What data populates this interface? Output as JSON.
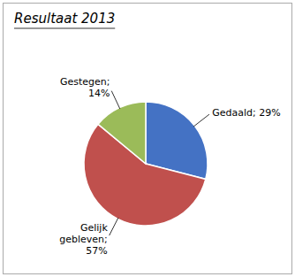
{
  "chart_data": {
    "type": "pie",
    "title": "Resultaat 2013",
    "values": [
      29,
      57,
      14
    ],
    "value_labels": [
      "Gedaald; 29%",
      "Gelijk\ngebleven;\n57%",
      "Gestegen;\n14%"
    ],
    "colors": [
      "#4472C4",
      "#C0504D",
      "#9BBB59"
    ],
    "data_labels": true
  }
}
